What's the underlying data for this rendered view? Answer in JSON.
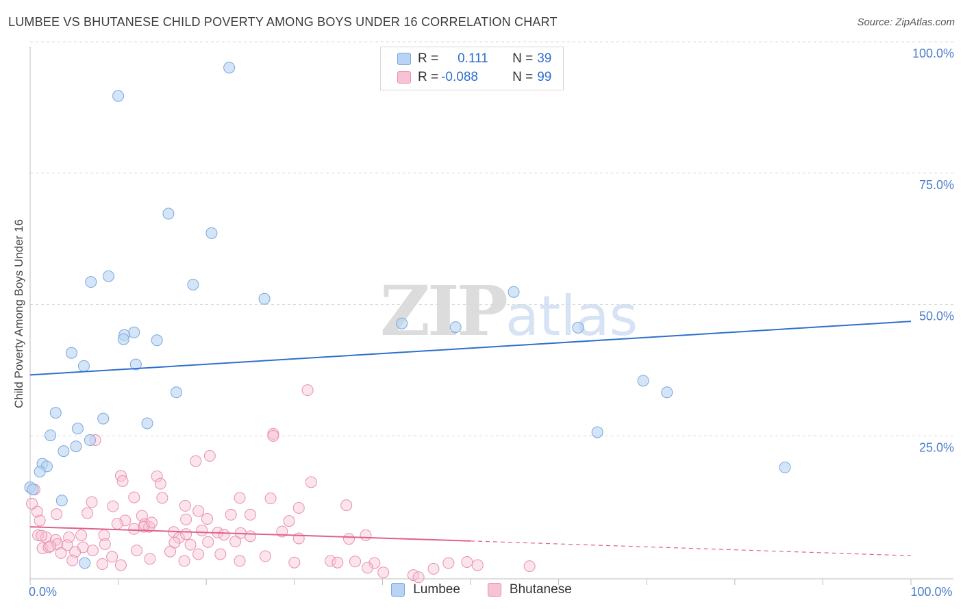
{
  "title": "LUMBEE VS BHUTANESE CHILD POVERTY AMONG BOYS UNDER 16 CORRELATION CHART",
  "source": "Source: ZipAtlas.com",
  "watermark": {
    "zip": "ZIP",
    "atlas": "atlas"
  },
  "legend": {
    "rows": [
      {
        "r_label": "R =",
        "r_value": "0.111",
        "n_label": "N =",
        "n_value": "39"
      },
      {
        "r_label": "R =",
        "r_value": "-0.088",
        "n_label": "N =",
        "n_value": "99"
      }
    ]
  },
  "bottom_legend": [
    "Lumbee",
    "Bhutanese"
  ],
  "colors": {
    "lumbee_fill": "#b8d3f4",
    "lumbee_stroke": "#7ba6dd",
    "lumbee_line": "#2f6fce",
    "bhutanese_fill": "#f7c3d4",
    "bhutanese_stroke": "#e88fae",
    "bhutanese_line": "#e0608c",
    "tick_label": "#4a7cc9",
    "grid": "#d9d9d9"
  },
  "chart_data": {
    "type": "scatter",
    "title": "LUMBEE VS BHUTANESE CHILD POVERTY AMONG BOYS UNDER 16 CORRELATION CHART",
    "xlabel": "",
    "ylabel": "Child Poverty Among Boys Under 16",
    "xlim": [
      0,
      100
    ],
    "ylim": [
      0,
      100
    ],
    "y_ticks": [
      "100.0%",
      "75.0%",
      "50.0%",
      "25.0%"
    ],
    "y_tick_values": [
      100,
      75,
      50,
      25
    ],
    "x_ticks": [
      "0.0%",
      "100.0%"
    ],
    "x_tick_values": [
      0,
      100
    ],
    "grid": true,
    "legend_position": "top-center",
    "series": [
      {
        "name": "Lumbee",
        "r": 0.111,
        "n": 39,
        "trend": {
          "x0": 0,
          "y0": 38.8,
          "x1": 100,
          "y1": 49.0
        },
        "points": [
          [
            22.6,
            97.3
          ],
          [
            10.0,
            91.9
          ],
          [
            15.7,
            69.5
          ],
          [
            20.6,
            65.8
          ],
          [
            8.9,
            57.6
          ],
          [
            6.9,
            56.5
          ],
          [
            18.5,
            56.0
          ],
          [
            26.6,
            53.3
          ],
          [
            42.2,
            48.6
          ],
          [
            11.8,
            46.9
          ],
          [
            10.7,
            46.4
          ],
          [
            14.4,
            45.4
          ],
          [
            10.6,
            45.6
          ],
          [
            4.7,
            43.0
          ],
          [
            6.1,
            40.5
          ],
          [
            12.0,
            40.8
          ],
          [
            54.9,
            54.6
          ],
          [
            48.3,
            47.9
          ],
          [
            62.2,
            47.8
          ],
          [
            16.6,
            35.5
          ],
          [
            69.6,
            37.7
          ],
          [
            72.3,
            35.5
          ],
          [
            2.9,
            31.6
          ],
          [
            8.3,
            30.5
          ],
          [
            5.4,
            28.6
          ],
          [
            13.3,
            29.6
          ],
          [
            2.3,
            27.3
          ],
          [
            6.8,
            26.4
          ],
          [
            5.2,
            25.2
          ],
          [
            3.8,
            24.3
          ],
          [
            1.4,
            21.9
          ],
          [
            1.9,
            21.4
          ],
          [
            1.1,
            20.4
          ],
          [
            0.0,
            17.4
          ],
          [
            3.6,
            14.9
          ],
          [
            64.4,
            27.9
          ],
          [
            85.7,
            21.2
          ],
          [
            6.2,
            3.0
          ],
          [
            0.3,
            17.0
          ]
        ]
      },
      {
        "name": "Bhutanese",
        "r": -0.088,
        "n": 99,
        "trend": {
          "x0": 0,
          "y0": 9.9,
          "x1": 50,
          "y1": 7.2,
          "x1_dashed": 100,
          "y1_dashed": 4.4
        },
        "points": [
          [
            31.5,
            35.9
          ],
          [
            27.6,
            27.6
          ],
          [
            27.6,
            27.2
          ],
          [
            7.4,
            26.4
          ],
          [
            20.4,
            23.4
          ],
          [
            18.8,
            22.4
          ],
          [
            10.3,
            19.6
          ],
          [
            10.5,
            18.6
          ],
          [
            14.4,
            19.5
          ],
          [
            14.8,
            18.1
          ],
          [
            31.9,
            18.4
          ],
          [
            23.8,
            15.4
          ],
          [
            11.8,
            15.5
          ],
          [
            15.0,
            15.4
          ],
          [
            27.3,
            15.3
          ],
          [
            7.0,
            14.6
          ],
          [
            9.4,
            13.8
          ],
          [
            17.6,
            13.9
          ],
          [
            19.1,
            12.9
          ],
          [
            22.8,
            12.2
          ],
          [
            30.5,
            13.5
          ],
          [
            35.9,
            14.0
          ],
          [
            3.0,
            12.3
          ],
          [
            6.5,
            12.5
          ],
          [
            12.7,
            12.0
          ],
          [
            20.1,
            11.4
          ],
          [
            25.0,
            12.2
          ],
          [
            1.1,
            11.1
          ],
          [
            10.8,
            11.1
          ],
          [
            13.0,
            10.4
          ],
          [
            13.5,
            9.9
          ],
          [
            17.7,
            11.3
          ],
          [
            29.4,
            11.0
          ],
          [
            28.6,
            9.0
          ],
          [
            11.8,
            9.5
          ],
          [
            9.9,
            10.5
          ],
          [
            12.9,
            9.9
          ],
          [
            13.8,
            10.7
          ],
          [
            16.3,
            8.9
          ],
          [
            19.5,
            9.2
          ],
          [
            21.3,
            8.8
          ],
          [
            23.9,
            8.7
          ],
          [
            25.0,
            8.1
          ],
          [
            0.9,
            8.3
          ],
          [
            1.8,
            7.9
          ],
          [
            2.9,
            7.4
          ],
          [
            4.4,
            7.9
          ],
          [
            5.8,
            8.3
          ],
          [
            8.4,
            8.3
          ],
          [
            16.9,
            7.8
          ],
          [
            17.7,
            8.5
          ],
          [
            22.0,
            8.4
          ],
          [
            36.2,
            7.6
          ],
          [
            1.4,
            5.8
          ],
          [
            2.1,
            6.0
          ],
          [
            3.1,
            6.6
          ],
          [
            4.2,
            6.4
          ],
          [
            6.0,
            6.0
          ],
          [
            8.5,
            6.6
          ],
          [
            16.4,
            6.9
          ],
          [
            18.2,
            6.5
          ],
          [
            20.2,
            7.0
          ],
          [
            23.3,
            7.1
          ],
          [
            30.5,
            7.7
          ],
          [
            38.1,
            8.3
          ],
          [
            0.8,
            12.8
          ],
          [
            1.3,
            8.2
          ],
          [
            2.3,
            6.2
          ],
          [
            3.5,
            4.9
          ],
          [
            5.1,
            5.1
          ],
          [
            7.1,
            5.4
          ],
          [
            9.3,
            4.2
          ],
          [
            12.1,
            5.4
          ],
          [
            15.9,
            5.2
          ],
          [
            19.1,
            4.7
          ],
          [
            21.6,
            4.7
          ],
          [
            23.8,
            3.4
          ],
          [
            26.7,
            4.3
          ],
          [
            34.1,
            3.4
          ],
          [
            36.9,
            3.3
          ],
          [
            39.1,
            3.0
          ],
          [
            47.5,
            3.0
          ],
          [
            50.8,
            2.6
          ],
          [
            56.7,
            2.4
          ],
          [
            4.8,
            3.5
          ],
          [
            8.2,
            2.8
          ],
          [
            10.3,
            2.6
          ],
          [
            13.6,
            3.8
          ],
          [
            17.5,
            3.4
          ],
          [
            30.0,
            3.1
          ],
          [
            34.9,
            3.1
          ],
          [
            38.3,
            2.1
          ],
          [
            40.1,
            1.2
          ],
          [
            43.5,
            0.7
          ],
          [
            45.8,
            1.9
          ],
          [
            44.1,
            0.3
          ],
          [
            49.6,
            3.2
          ],
          [
            0.5,
            17.0
          ],
          [
            0.2,
            14.3
          ]
        ]
      }
    ]
  }
}
